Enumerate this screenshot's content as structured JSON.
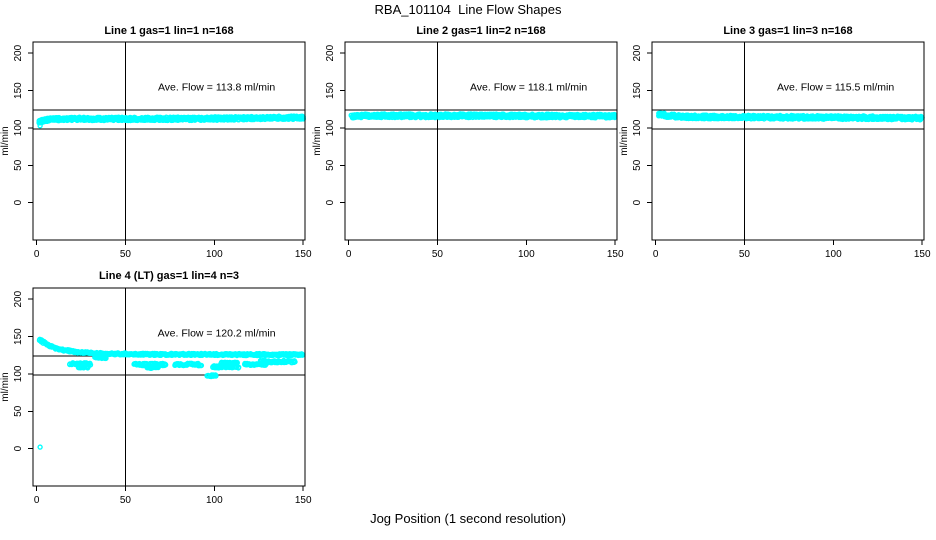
{
  "figure": {
    "title": "RBA_101104  Line Flow Shapes",
    "xlabel": "Jog Position (1 second resolution)",
    "background_color": "#ffffff",
    "point_color": "#00ffff",
    "point_shape": "open-circle",
    "axis_color": "#000000"
  },
  "chart_data": [
    {
      "type": "scatter",
      "title": "Line 1 gas=1 lin=1 n=168",
      "annotation": "Ave. Flow =  113.8  ml/min",
      "ave_flow_ml_min": 113.8,
      "n": 168,
      "ylabel": "ml/min",
      "x_ticks": [
        0,
        50,
        100,
        150
      ],
      "y_ticks": [
        0,
        50,
        100,
        150,
        200
      ],
      "x_range": [
        -2,
        151
      ],
      "y_range": [
        -50,
        215
      ],
      "ref_lines_y": [
        124,
        98.5
      ],
      "vline_x": 50,
      "segments": [
        {
          "keypoints": [
            [
              2,
              108.5
            ],
            [
              6,
              111
            ],
            [
              14,
              112
            ],
            [
              90,
              112.3
            ],
            [
              150,
              113.8
            ]
          ],
          "spread": 2.2,
          "rows": 6,
          "x_step": 1.2
        }
      ],
      "clusters": [],
      "outliers": [
        [
          2,
          103
        ]
      ]
    },
    {
      "type": "scatter",
      "title": "Line 2 gas=1 lin=2 n=168",
      "annotation": "Ave. Flow =  118.1  ml/min",
      "ave_flow_ml_min": 118.1,
      "n": 168,
      "ylabel": "ml/min",
      "x_ticks": [
        0,
        50,
        100,
        150
      ],
      "y_ticks": [
        0,
        50,
        100,
        150,
        200
      ],
      "x_range": [
        -2,
        151
      ],
      "y_range": [
        -50,
        215
      ],
      "ref_lines_y": [
        124,
        98.5
      ],
      "vline_x": 50,
      "segments": [
        {
          "keypoints": [
            [
              2,
              115.5
            ],
            [
              8,
              116.3
            ],
            [
              80,
              116.2
            ],
            [
              150,
              115.6
            ]
          ],
          "spread": 2.4,
          "rows": 6,
          "x_step": 1.2
        }
      ],
      "clusters": [],
      "outliers": []
    },
    {
      "type": "scatter",
      "title": "Line 3 gas=1 lin=3 n=168",
      "annotation": "Ave. Flow =  115.5  ml/min",
      "ave_flow_ml_min": 115.5,
      "n": 168,
      "ylabel": "ml/min",
      "x_ticks": [
        0,
        50,
        100,
        150
      ],
      "y_ticks": [
        0,
        50,
        100,
        150,
        200
      ],
      "x_range": [
        -2,
        151
      ],
      "y_range": [
        -50,
        215
      ],
      "ref_lines_y": [
        124,
        98.5
      ],
      "vline_x": 50,
      "segments": [
        {
          "keypoints": [
            [
              2,
              118.5
            ],
            [
              7,
              116.2
            ],
            [
              18,
              114.8
            ],
            [
              80,
              114.2
            ],
            [
              150,
              113.2
            ]
          ],
          "spread": 2.4,
          "rows": 6,
          "x_step": 1.2
        }
      ],
      "clusters": [],
      "outliers": []
    },
    {
      "type": "scatter",
      "title": "Line 4 (LT) gas=1 lin=4 n=3",
      "annotation": "Ave. Flow =  120.2  ml/min",
      "ave_flow_ml_min": 120.2,
      "n": 3,
      "ylabel": "ml/min",
      "x_ticks": [
        0,
        50,
        100,
        150
      ],
      "y_ticks": [
        0,
        50,
        100,
        150,
        200
      ],
      "x_range": [
        -2,
        151
      ],
      "y_range": [
        -50,
        215
      ],
      "ref_lines_y": [
        124,
        98.5
      ],
      "vline_x": 50,
      "segments": [
        {
          "keypoints": [
            [
              2,
              146
            ],
            [
              4,
              142
            ],
            [
              7,
              138
            ],
            [
              11,
              134.5
            ],
            [
              16,
              131.5
            ],
            [
              22,
              129.5
            ],
            [
              30,
              128
            ],
            [
              42,
              127
            ],
            [
              60,
              126.3
            ],
            [
              100,
              126
            ],
            [
              150,
              125.8
            ]
          ],
          "spread": 1.3,
          "rows": 3,
          "x_step": 0.9
        }
      ],
      "clusters": [
        {
          "x1": 19,
          "x2": 31,
          "y": 113.5,
          "spread": 1.5
        },
        {
          "x1": 24,
          "x2": 29,
          "y": 109,
          "spread": 1.0
        },
        {
          "x1": 33,
          "x2": 40,
          "y": 121.5,
          "spread": 1.0
        },
        {
          "x1": 55,
          "x2": 73,
          "y": 112.5,
          "spread": 1.7
        },
        {
          "x1": 62,
          "x2": 69,
          "y": 108.5,
          "spread": 1.0
        },
        {
          "x1": 78,
          "x2": 93,
          "y": 112.5,
          "spread": 1.7
        },
        {
          "x1": 96,
          "x2": 101,
          "y": 97.5,
          "spread": 1.3
        },
        {
          "x1": 99,
          "x2": 114,
          "y": 109.5,
          "spread": 1.5
        },
        {
          "x1": 104,
          "x2": 113,
          "y": 114.5,
          "spread": 1.3
        },
        {
          "x1": 117,
          "x2": 129,
          "y": 113,
          "spread": 1.5
        },
        {
          "x1": 126,
          "x2": 146,
          "y": 116.5,
          "spread": 1.5
        }
      ],
      "outliers": [
        [
          2,
          2
        ]
      ]
    }
  ]
}
